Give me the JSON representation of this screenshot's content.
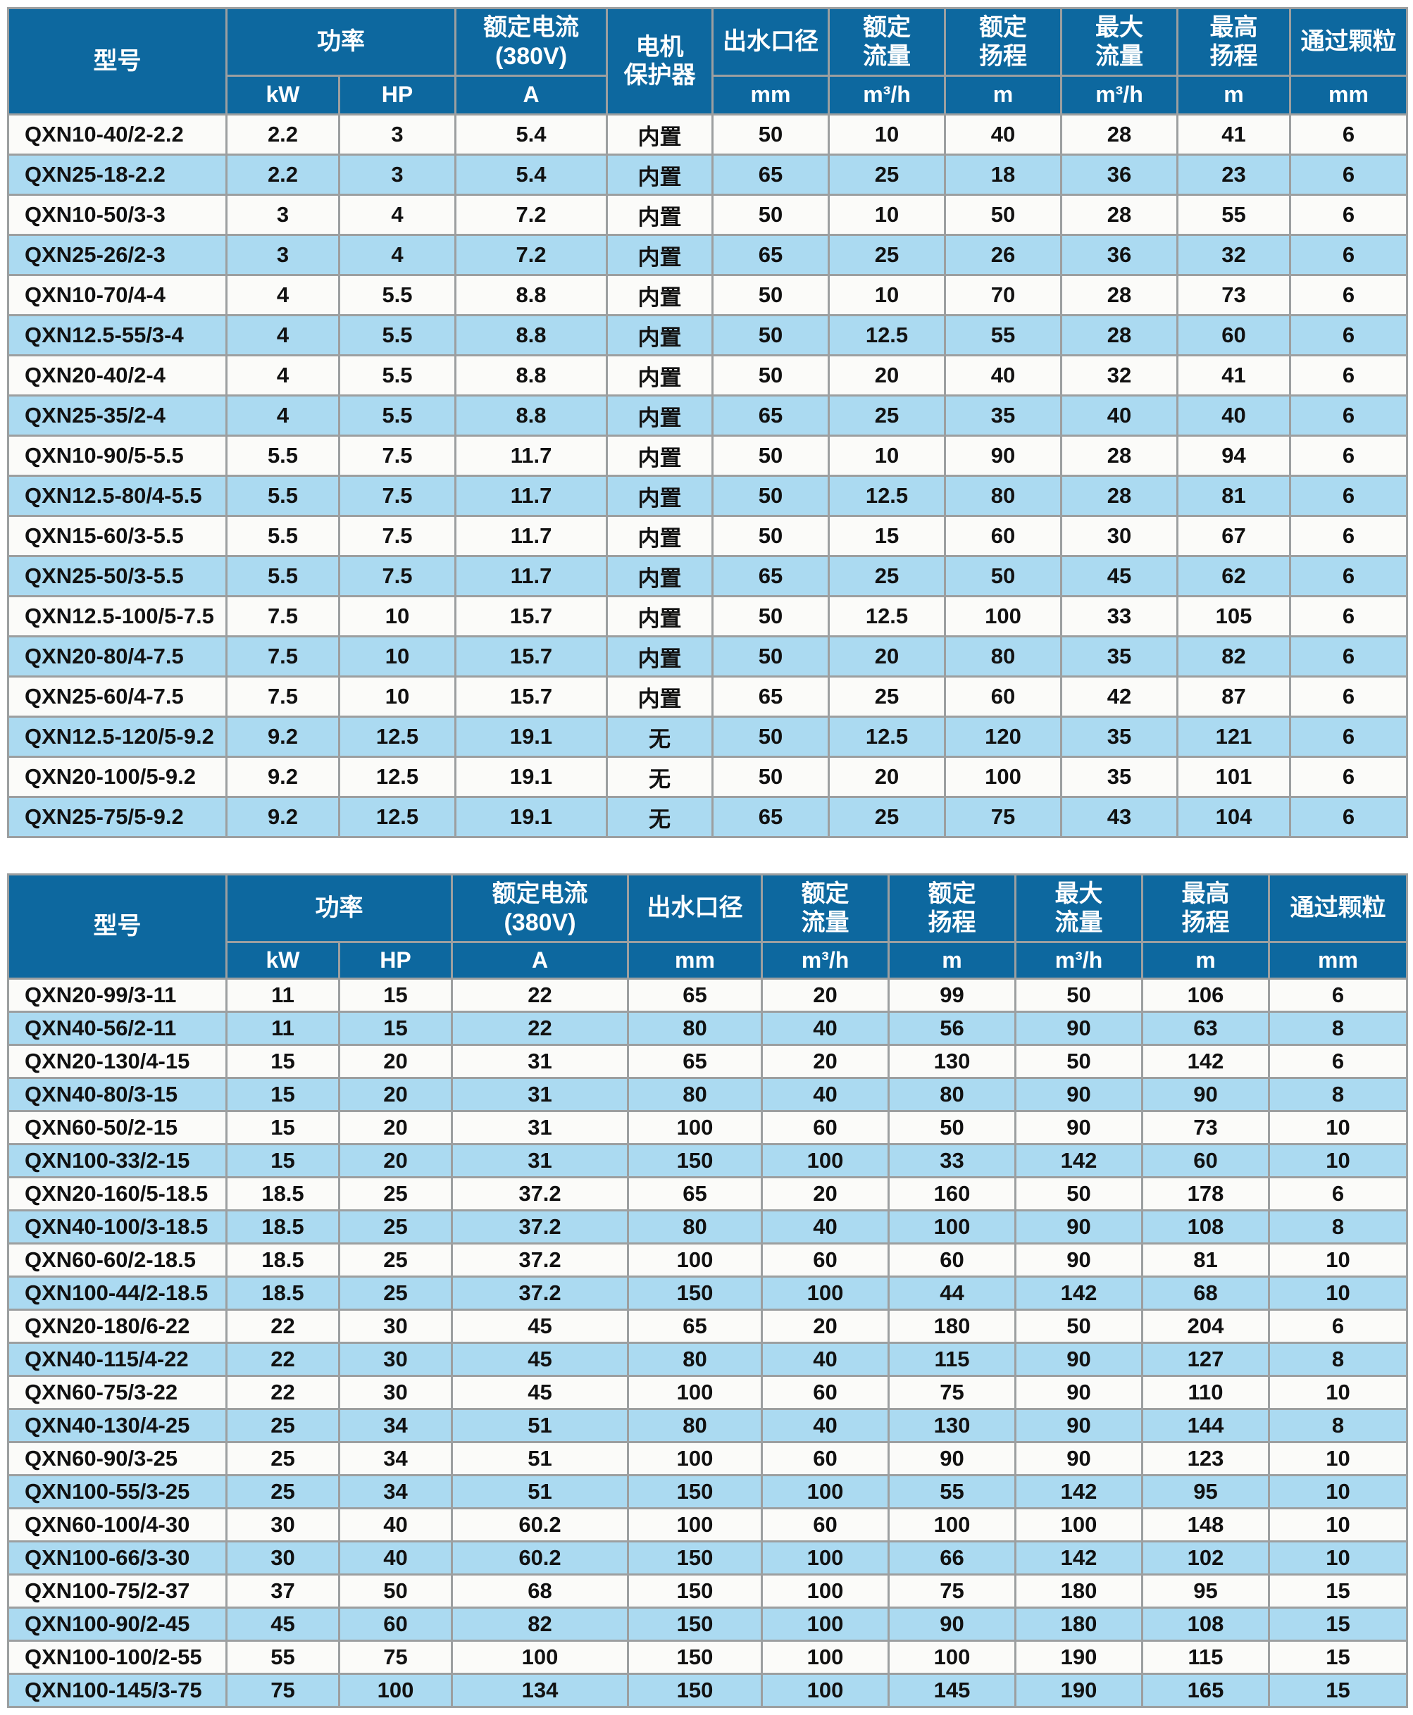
{
  "colors": {
    "header_bg": "#0d689f",
    "stripe_bg": "#abdaf1",
    "row_bg": "#fbfbf9",
    "border": "#9c9fa0"
  },
  "table1": {
    "headers": {
      "model": "型号",
      "power": "功率",
      "power_kw": "kW",
      "power_hp": "HP",
      "rated_current": "额定电流\n(380V)",
      "rated_current_unit": "A",
      "motor_protector": "电机\n保护器",
      "outlet_diameter": "出水口径",
      "outlet_diameter_unit": "mm",
      "rated_flow": "额定\n流量",
      "rated_flow_unit": "m³/h",
      "rated_head": "额定\n扬程",
      "rated_head_unit": "m",
      "max_flow": "最大\n流量",
      "max_flow_unit": "m³/h",
      "max_head": "最高\n扬程",
      "max_head_unit": "m",
      "particle": "通过颗粒",
      "particle_unit": "mm"
    },
    "rows": [
      [
        "QXN10-40/2-2.2",
        "2.2",
        "3",
        "5.4",
        "内置",
        "50",
        "10",
        "40",
        "28",
        "41",
        "6"
      ],
      [
        "QXN25-18-2.2",
        "2.2",
        "3",
        "5.4",
        "内置",
        "65",
        "25",
        "18",
        "36",
        "23",
        "6"
      ],
      [
        "QXN10-50/3-3",
        "3",
        "4",
        "7.2",
        "内置",
        "50",
        "10",
        "50",
        "28",
        "55",
        "6"
      ],
      [
        "QXN25-26/2-3",
        "3",
        "4",
        "7.2",
        "内置",
        "65",
        "25",
        "26",
        "36",
        "32",
        "6"
      ],
      [
        "QXN10-70/4-4",
        "4",
        "5.5",
        "8.8",
        "内置",
        "50",
        "10",
        "70",
        "28",
        "73",
        "6"
      ],
      [
        "QXN12.5-55/3-4",
        "4",
        "5.5",
        "8.8",
        "内置",
        "50",
        "12.5",
        "55",
        "28",
        "60",
        "6"
      ],
      [
        "QXN20-40/2-4",
        "4",
        "5.5",
        "8.8",
        "内置",
        "50",
        "20",
        "40",
        "32",
        "41",
        "6"
      ],
      [
        "QXN25-35/2-4",
        "4",
        "5.5",
        "8.8",
        "内置",
        "65",
        "25",
        "35",
        "40",
        "40",
        "6"
      ],
      [
        "QXN10-90/5-5.5",
        "5.5",
        "7.5",
        "11.7",
        "内置",
        "50",
        "10",
        "90",
        "28",
        "94",
        "6"
      ],
      [
        "QXN12.5-80/4-5.5",
        "5.5",
        "7.5",
        "11.7",
        "内置",
        "50",
        "12.5",
        "80",
        "28",
        "81",
        "6"
      ],
      [
        "QXN15-60/3-5.5",
        "5.5",
        "7.5",
        "11.7",
        "内置",
        "50",
        "15",
        "60",
        "30",
        "67",
        "6"
      ],
      [
        "QXN25-50/3-5.5",
        "5.5",
        "7.5",
        "11.7",
        "内置",
        "65",
        "25",
        "50",
        "45",
        "62",
        "6"
      ],
      [
        "QXN12.5-100/5-7.5",
        "7.5",
        "10",
        "15.7",
        "内置",
        "50",
        "12.5",
        "100",
        "33",
        "105",
        "6"
      ],
      [
        "QXN20-80/4-7.5",
        "7.5",
        "10",
        "15.7",
        "内置",
        "50",
        "20",
        "80",
        "35",
        "82",
        "6"
      ],
      [
        "QXN25-60/4-7.5",
        "7.5",
        "10",
        "15.7",
        "内置",
        "65",
        "25",
        "60",
        "42",
        "87",
        "6"
      ],
      [
        "QXN12.5-120/5-9.2",
        "9.2",
        "12.5",
        "19.1",
        "无",
        "50",
        "12.5",
        "120",
        "35",
        "121",
        "6"
      ],
      [
        "QXN20-100/5-9.2",
        "9.2",
        "12.5",
        "19.1",
        "无",
        "50",
        "20",
        "100",
        "35",
        "101",
        "6"
      ],
      [
        "QXN25-75/5-9.2",
        "9.2",
        "12.5",
        "19.1",
        "无",
        "65",
        "25",
        "75",
        "43",
        "104",
        "6"
      ]
    ]
  },
  "table2": {
    "headers": {
      "model": "型号",
      "power": "功率",
      "power_kw": "kW",
      "power_hp": "HP",
      "rated_current": "额定电流\n(380V)",
      "rated_current_unit": "A",
      "outlet_diameter": "出水口径",
      "outlet_diameter_unit": "mm",
      "rated_flow": "额定\n流量",
      "rated_flow_unit": "m³/h",
      "rated_head": "额定\n扬程",
      "rated_head_unit": "m",
      "max_flow": "最大\n流量",
      "max_flow_unit": "m³/h",
      "max_head": "最高\n扬程",
      "max_head_unit": "m",
      "particle": "通过颗粒",
      "particle_unit": "mm"
    },
    "rows": [
      [
        "QXN20-99/3-11",
        "11",
        "15",
        "22",
        "65",
        "20",
        "99",
        "50",
        "106",
        "6"
      ],
      [
        "QXN40-56/2-11",
        "11",
        "15",
        "22",
        "80",
        "40",
        "56",
        "90",
        "63",
        "8"
      ],
      [
        "QXN20-130/4-15",
        "15",
        "20",
        "31",
        "65",
        "20",
        "130",
        "50",
        "142",
        "6"
      ],
      [
        "QXN40-80/3-15",
        "15",
        "20",
        "31",
        "80",
        "40",
        "80",
        "90",
        "90",
        "8"
      ],
      [
        "QXN60-50/2-15",
        "15",
        "20",
        "31",
        "100",
        "60",
        "50",
        "90",
        "73",
        "10"
      ],
      [
        "QXN100-33/2-15",
        "15",
        "20",
        "31",
        "150",
        "100",
        "33",
        "142",
        "60",
        "10"
      ],
      [
        "QXN20-160/5-18.5",
        "18.5",
        "25",
        "37.2",
        "65",
        "20",
        "160",
        "50",
        "178",
        "6"
      ],
      [
        "QXN40-100/3-18.5",
        "18.5",
        "25",
        "37.2",
        "80",
        "40",
        "100",
        "90",
        "108",
        "8"
      ],
      [
        "QXN60-60/2-18.5",
        "18.5",
        "25",
        "37.2",
        "100",
        "60",
        "60",
        "90",
        "81",
        "10"
      ],
      [
        "QXN100-44/2-18.5",
        "18.5",
        "25",
        "37.2",
        "150",
        "100",
        "44",
        "142",
        "68",
        "10"
      ],
      [
        "QXN20-180/6-22",
        "22",
        "30",
        "45",
        "65",
        "20",
        "180",
        "50",
        "204",
        "6"
      ],
      [
        "QXN40-115/4-22",
        "22",
        "30",
        "45",
        "80",
        "40",
        "115",
        "90",
        "127",
        "8"
      ],
      [
        "QXN60-75/3-22",
        "22",
        "30",
        "45",
        "100",
        "60",
        "75",
        "90",
        "110",
        "10"
      ],
      [
        "QXN40-130/4-25",
        "25",
        "34",
        "51",
        "80",
        "40",
        "130",
        "90",
        "144",
        "8"
      ],
      [
        "QXN60-90/3-25",
        "25",
        "34",
        "51",
        "100",
        "60",
        "90",
        "90",
        "123",
        "10"
      ],
      [
        "QXN100-55/3-25",
        "25",
        "34",
        "51",
        "150",
        "100",
        "55",
        "142",
        "95",
        "10"
      ],
      [
        "QXN60-100/4-30",
        "30",
        "40",
        "60.2",
        "100",
        "60",
        "100",
        "100",
        "148",
        "10"
      ],
      [
        "QXN100-66/3-30",
        "30",
        "40",
        "60.2",
        "150",
        "100",
        "66",
        "142",
        "102",
        "10"
      ],
      [
        "QXN100-75/2-37",
        "37",
        "50",
        "68",
        "150",
        "100",
        "75",
        "180",
        "95",
        "15"
      ],
      [
        "QXN100-90/2-45",
        "45",
        "60",
        "82",
        "150",
        "100",
        "90",
        "180",
        "108",
        "15"
      ],
      [
        "QXN100-100/2-55",
        "55",
        "75",
        "100",
        "150",
        "100",
        "100",
        "190",
        "115",
        "15"
      ],
      [
        "QXN100-145/3-75",
        "75",
        "100",
        "134",
        "150",
        "100",
        "145",
        "190",
        "165",
        "15"
      ]
    ]
  }
}
